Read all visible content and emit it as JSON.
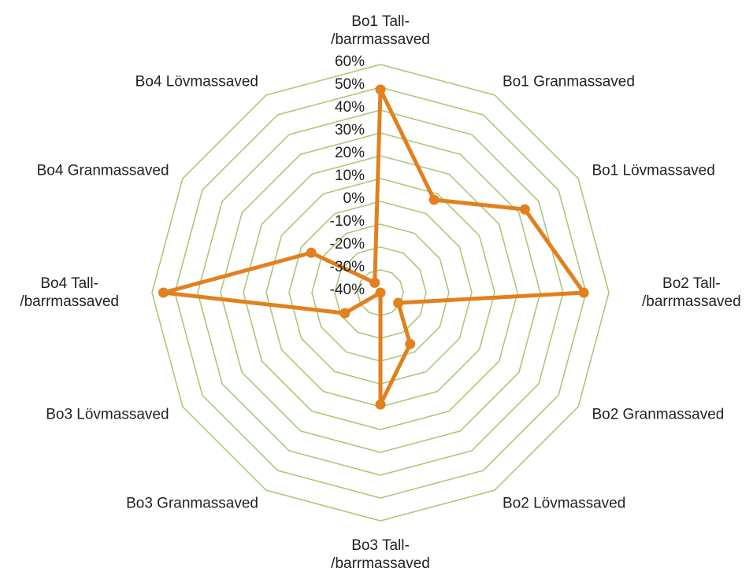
{
  "chart_data": {
    "type": "radar",
    "categories": [
      "Bo1 Tall-\n/barrmassaved",
      "Bo1 Granmassaved",
      "Bo1 Lövmassaved",
      "Bo2 Tall-\n/barrmassaved",
      "Bo2 Granmassaved",
      "Bo2 Lövmassaved",
      "Bo3 Tall-\n/barrmassaved",
      "Bo3 Granmassaved",
      "Bo3 Lövmassaved",
      "Bo4 Tall-\n/barrmassaved",
      "Bo4 Granmassaved",
      "Bo4 Lövmassaved"
    ],
    "series": [
      {
        "color": "#e2801e",
        "values": [
          49,
          7,
          33,
          49,
          -31,
          -14,
          9,
          -40,
          -22,
          55,
          -5,
          -35
        ]
      }
    ],
    "ylim": [
      -40,
      60
    ],
    "yticks": [
      {
        "value": -40,
        "label": "-40%"
      },
      {
        "value": -30,
        "label": "-30%"
      },
      {
        "value": -20,
        "label": "-20%"
      },
      {
        "value": -10,
        "label": "-10%"
      },
      {
        "value": 0,
        "label": "0%"
      },
      {
        "value": 10,
        "label": "10%"
      },
      {
        "value": 20,
        "label": "20%"
      },
      {
        "value": 30,
        "label": "30%"
      },
      {
        "value": 40,
        "label": "40%"
      },
      {
        "value": 50,
        "label": "50%"
      },
      {
        "value": 60,
        "label": "60%"
      }
    ],
    "grid": true,
    "grid_color": "#a9c97a"
  }
}
